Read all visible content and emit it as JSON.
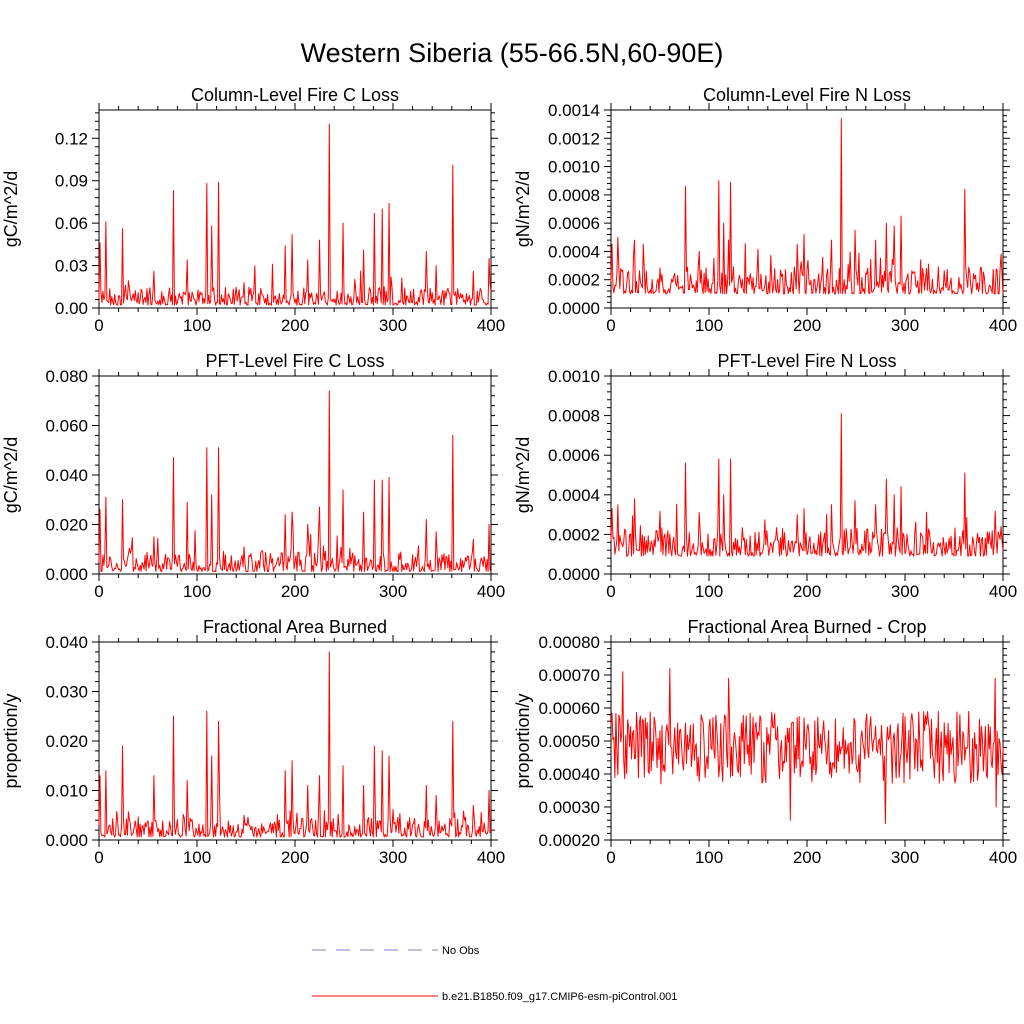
{
  "title": "Western Siberia (55-66.5N,60-90E)",
  "colors": {
    "series": "#ff0000",
    "obs": "#7f7fcc",
    "axis": "#000000"
  },
  "legend": {
    "items": [
      {
        "label": "No Obs",
        "style": "dashed"
      },
      {
        "label": "b.e21.B1850.f09_g17.CMIP6-esm-piControl.001",
        "style": "solid"
      }
    ]
  },
  "chart_data": [
    {
      "id": "p1",
      "type": "line",
      "title": "Column-Level Fire C Loss",
      "ylabel": "gC/m^2/d",
      "xlim": [
        0,
        400
      ],
      "ylim": [
        0,
        0.14
      ],
      "xticks": [
        0,
        100,
        200,
        300,
        400
      ],
      "xtick_labels": [
        "0",
        "100",
        "200",
        "300",
        "400"
      ],
      "yticks": [
        0,
        0.03,
        0.06,
        0.09,
        0.12
      ],
      "ytick_labels": [
        "0.00",
        "0.03",
        "0.06",
        "0.09",
        "0.12"
      ],
      "series": [
        {
          "name": "b.e21.B1850.f09_g17.CMIP6-esm-piControl.001",
          "base": 0.002,
          "noise": 0.008,
          "peaks": [
            [
              1,
              0.046
            ],
            [
              7,
              0.061
            ],
            [
              24,
              0.056
            ],
            [
              56,
              0.026
            ],
            [
              76,
              0.083
            ],
            [
              90,
              0.034
            ],
            [
              110,
              0.088
            ],
            [
              115,
              0.058
            ],
            [
              122,
              0.089
            ],
            [
              148,
              0.018
            ],
            [
              190,
              0.044
            ],
            [
              197,
              0.052
            ],
            [
              213,
              0.034
            ],
            [
              225,
              0.048
            ],
            [
              235,
              0.13
            ],
            [
              249,
              0.06
            ],
            [
              270,
              0.041
            ],
            [
              281,
              0.067
            ],
            [
              289,
              0.07
            ],
            [
              296,
              0.074
            ],
            [
              334,
              0.04
            ],
            [
              344,
              0.03
            ],
            [
              361,
              0.101
            ],
            [
              382,
              0.026
            ],
            [
              398,
              0.035
            ]
          ]
        }
      ]
    },
    {
      "id": "p2",
      "type": "line",
      "title": "Column-Level Fire N Loss",
      "ylabel": "gN/m^2/d",
      "xlim": [
        0,
        400
      ],
      "ylim": [
        0,
        0.0014
      ],
      "xticks": [
        0,
        100,
        200,
        300,
        400
      ],
      "xtick_labels": [
        "0",
        "100",
        "200",
        "300",
        "400"
      ],
      "yticks": [
        0,
        0.0002,
        0.0004,
        0.0006,
        0.0008,
        0.001,
        0.0012,
        0.0014
      ],
      "ytick_labels": [
        "0.0000",
        "0.0002",
        "0.0004",
        "0.0006",
        "0.0008",
        "0.0010",
        "0.0012",
        "0.0014"
      ],
      "series": [
        {
          "name": "b.e21.B1850.f09_g17.CMIP6-esm-piControl.001",
          "base": 0.0001,
          "noise": 0.00012,
          "peaks": [
            [
              1,
              0.00045
            ],
            [
              7,
              0.0005
            ],
            [
              24,
              0.00048
            ],
            [
              76,
              0.00086
            ],
            [
              90,
              0.0004
            ],
            [
              110,
              0.0009
            ],
            [
              115,
              0.0006
            ],
            [
              122,
              0.00089
            ],
            [
              190,
              0.00045
            ],
            [
              197,
              0.00052
            ],
            [
              225,
              0.00048
            ],
            [
              235,
              0.00134
            ],
            [
              249,
              0.00055
            ],
            [
              270,
              0.00048
            ],
            [
              281,
              0.0006
            ],
            [
              289,
              0.00058
            ],
            [
              296,
              0.00065
            ],
            [
              361,
              0.00084
            ],
            [
              398,
              0.00038
            ]
          ]
        }
      ]
    },
    {
      "id": "p3",
      "type": "line",
      "title": "PFT-Level Fire C Loss",
      "ylabel": "gC/m^2/d",
      "xlim": [
        0,
        400
      ],
      "ylim": [
        0,
        0.08
      ],
      "xticks": [
        0,
        100,
        200,
        300,
        400
      ],
      "xtick_labels": [
        "0",
        "100",
        "200",
        "300",
        "400"
      ],
      "yticks": [
        0,
        0.02,
        0.04,
        0.06,
        0.08
      ],
      "ytick_labels": [
        "0.000",
        "0.020",
        "0.040",
        "0.060",
        "0.080"
      ],
      "series": [
        {
          "name": "b.e21.B1850.f09_g17.CMIP6-esm-piControl.001",
          "base": 0.001,
          "noise": 0.005,
          "peaks": [
            [
              1,
              0.026
            ],
            [
              7,
              0.031
            ],
            [
              24,
              0.03
            ],
            [
              56,
              0.015
            ],
            [
              76,
              0.047
            ],
            [
              90,
              0.029
            ],
            [
              110,
              0.051
            ],
            [
              115,
              0.032
            ],
            [
              122,
              0.051
            ],
            [
              148,
              0.011
            ],
            [
              190,
              0.024
            ],
            [
              197,
              0.025
            ],
            [
              213,
              0.02
            ],
            [
              225,
              0.027
            ],
            [
              235,
              0.074
            ],
            [
              249,
              0.034
            ],
            [
              270,
              0.025
            ],
            [
              281,
              0.038
            ],
            [
              289,
              0.038
            ],
            [
              296,
              0.039
            ],
            [
              334,
              0.022
            ],
            [
              344,
              0.017
            ],
            [
              361,
              0.056
            ],
            [
              382,
              0.014
            ],
            [
              398,
              0.02
            ]
          ]
        }
      ]
    },
    {
      "id": "p4",
      "type": "line",
      "title": "PFT-Level Fire N Loss",
      "ylabel": "gN/m^2/d",
      "xlim": [
        0,
        400
      ],
      "ylim": [
        0,
        0.001
      ],
      "xticks": [
        0,
        100,
        200,
        300,
        400
      ],
      "xtick_labels": [
        "0",
        "100",
        "200",
        "300",
        "400"
      ],
      "yticks": [
        0,
        0.0002,
        0.0004,
        0.0006,
        0.0008,
        0.001
      ],
      "ytick_labels": [
        "0.0000",
        "0.0002",
        "0.0004",
        "0.0006",
        "0.0008",
        "0.0010"
      ],
      "series": [
        {
          "name": "b.e21.B1850.f09_g17.CMIP6-esm-piControl.001",
          "base": 9e-05,
          "noise": 9e-05,
          "peaks": [
            [
              1,
              0.00033
            ],
            [
              7,
              0.00035
            ],
            [
              24,
              0.00038
            ],
            [
              76,
              0.00056
            ],
            [
              90,
              0.00031
            ],
            [
              110,
              0.00058
            ],
            [
              115,
              0.0004
            ],
            [
              122,
              0.00058
            ],
            [
              190,
              0.0003
            ],
            [
              197,
              0.00033
            ],
            [
              225,
              0.00035
            ],
            [
              235,
              0.00081
            ],
            [
              249,
              0.00037
            ],
            [
              270,
              0.00035
            ],
            [
              281,
              0.00048
            ],
            [
              289,
              0.0004
            ],
            [
              296,
              0.00044
            ],
            [
              361,
              0.00051
            ],
            [
              398,
              0.00024
            ]
          ]
        }
      ]
    },
    {
      "id": "p5",
      "type": "line",
      "title": "Fractional Area Burned",
      "ylabel": "proportion/y",
      "xlim": [
        0,
        400
      ],
      "ylim": [
        0,
        0.04
      ],
      "xticks": [
        0,
        100,
        200,
        300,
        400
      ],
      "xtick_labels": [
        "0",
        "100",
        "200",
        "300",
        "400"
      ],
      "yticks": [
        0,
        0.01,
        0.02,
        0.03,
        0.04
      ],
      "ytick_labels": [
        "0.000",
        "0.010",
        "0.020",
        "0.030",
        "0.040"
      ],
      "series": [
        {
          "name": "b.e21.B1850.f09_g17.CMIP6-esm-piControl.001",
          "base": 0.0006,
          "noise": 0.0025,
          "peaks": [
            [
              1,
              0.013
            ],
            [
              7,
              0.014
            ],
            [
              24,
              0.019
            ],
            [
              56,
              0.013
            ],
            [
              76,
              0.025
            ],
            [
              90,
              0.012
            ],
            [
              110,
              0.026
            ],
            [
              115,
              0.017
            ],
            [
              122,
              0.024
            ],
            [
              190,
              0.014
            ],
            [
              197,
              0.016
            ],
            [
              213,
              0.011
            ],
            [
              225,
              0.013
            ],
            [
              235,
              0.038
            ],
            [
              249,
              0.015
            ],
            [
              270,
              0.011
            ],
            [
              281,
              0.019
            ],
            [
              289,
              0.018
            ],
            [
              296,
              0.017
            ],
            [
              334,
              0.011
            ],
            [
              344,
              0.009
            ],
            [
              361,
              0.024
            ],
            [
              382,
              0.007
            ],
            [
              398,
              0.01
            ]
          ]
        }
      ]
    },
    {
      "id": "p6",
      "type": "line",
      "title": "Fractional Area Burned - Crop",
      "ylabel": "proportion/y",
      "xlim": [
        0,
        400
      ],
      "ylim": [
        0.0002,
        0.0008
      ],
      "xticks": [
        0,
        100,
        200,
        300,
        400
      ],
      "xtick_labels": [
        "0",
        "100",
        "200",
        "300",
        "400"
      ],
      "yticks": [
        0.0002,
        0.0003,
        0.0004,
        0.0005,
        0.0006,
        0.0007,
        0.0008
      ],
      "ytick_labels": [
        "0.00020",
        "0.00030",
        "0.00040",
        "0.00050",
        "0.00060",
        "0.00070",
        "0.00080"
      ],
      "series": [
        {
          "name": "b.e21.B1850.f09_g17.CMIP6-esm-piControl.001",
          "mean": 0.00048,
          "amp": 0.00011,
          "peaks": [
            [
              12,
              0.00071
            ],
            [
              60,
              0.00072
            ],
            [
              120,
              0.00069
            ],
            [
              183,
              0.00026
            ],
            [
              280,
              0.00025
            ],
            [
              392,
              0.00069
            ],
            [
              393,
              0.0003
            ]
          ]
        }
      ]
    }
  ]
}
